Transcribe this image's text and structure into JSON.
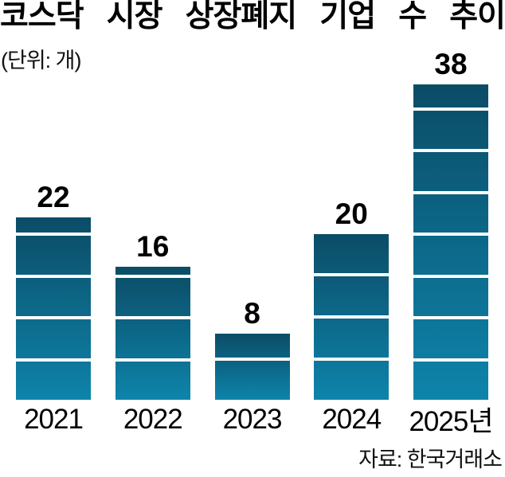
{
  "header": {
    "title": "코스닥 시장 상장폐지 기업 수 추이",
    "unit_label": "(단위: 개)"
  },
  "footer": {
    "source": "자료: 한국거래소"
  },
  "chart_data": {
    "type": "bar",
    "title": "코스닥 시장 상장폐지 기업 수 추이",
    "unit": "개",
    "categories": [
      "2021",
      "2022",
      "2023",
      "2024",
      "2025년"
    ],
    "values": [
      22,
      16,
      8,
      20,
      38
    ],
    "ylim": [
      0,
      38
    ],
    "segment_block_size": 5,
    "grid": false,
    "legend": false,
    "colors": {
      "bar_gradient_top": "#0b4c66",
      "bar_gradient_bottom": "#0e84ab",
      "segment_gap": "#ffffff",
      "value_label": "#000000",
      "axis_label": "#000000"
    },
    "source": "자료: 한국거래소"
  }
}
